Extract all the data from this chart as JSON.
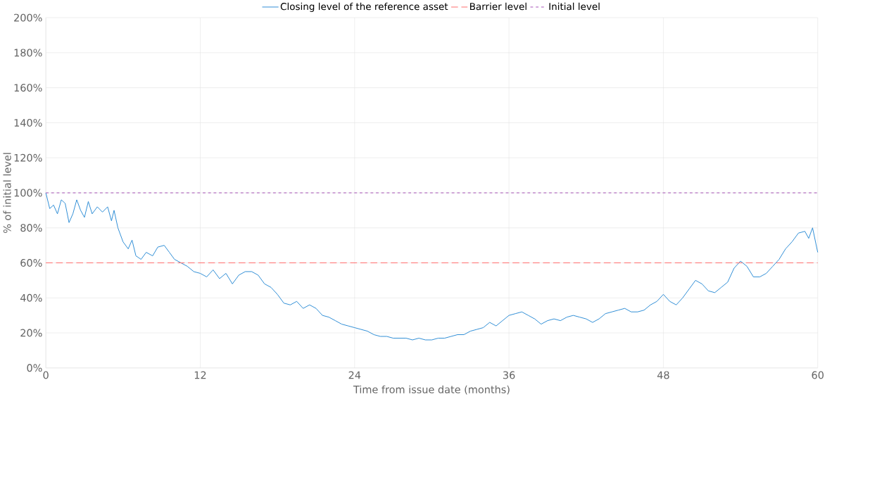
{
  "chart_data": {
    "type": "line",
    "xlabel": "Time from issue date (months)",
    "ylabel": "% of initial level",
    "x": [
      0,
      0.3,
      0.6,
      0.9,
      1.2,
      1.5,
      1.8,
      2.1,
      2.4,
      2.7,
      3.0,
      3.3,
      3.6,
      4.0,
      4.4,
      4.8,
      5.1,
      5.3,
      5.6,
      6.0,
      6.4,
      6.7,
      7.0,
      7.4,
      7.8,
      8.3,
      8.7,
      9.2,
      9.6,
      10.0,
      10.5,
      11.0,
      11.5,
      12.0,
      12.5,
      13.0,
      13.5,
      14.0,
      14.5,
      15.0,
      15.5,
      16.0,
      16.5,
      17.0,
      17.5,
      18.0,
      18.5,
      19.0,
      19.5,
      20.0,
      20.5,
      21.0,
      21.5,
      22.0,
      22.5,
      23.0,
      23.5,
      24.0,
      24.5,
      25.0,
      25.5,
      26.0,
      26.5,
      27.0,
      27.5,
      28.0,
      28.5,
      29.0,
      29.5,
      30.0,
      30.5,
      31.0,
      31.5,
      32.0,
      32.5,
      33.0,
      33.5,
      34.0,
      34.5,
      35.0,
      35.5,
      36.0,
      36.5,
      37.0,
      37.5,
      38.0,
      38.5,
      39.0,
      39.5,
      40.0,
      40.5,
      41.0,
      41.5,
      42.0,
      42.5,
      43.0,
      43.5,
      44.0,
      44.5,
      45.0,
      45.5,
      46.0,
      46.5,
      47.0,
      47.5,
      48.0,
      48.5,
      49.0,
      49.5,
      50.0,
      50.5,
      51.0,
      51.5,
      52.0,
      52.5,
      53.0,
      53.5,
      54.0,
      54.5,
      55.0,
      55.5,
      56.0,
      56.5,
      57.0,
      57.5,
      58.0,
      58.5,
      59.0,
      59.3,
      59.6,
      60.0
    ],
    "series": [
      {
        "name": "Closing level of the reference asset",
        "color": "#2a8ad4",
        "values": [
          100,
          91,
          93,
          88,
          96,
          94,
          83,
          88,
          96,
          90,
          86,
          95,
          88,
          92,
          89,
          92,
          84,
          90,
          80,
          72,
          68,
          73,
          64,
          62,
          66,
          64,
          69,
          70,
          66,
          62,
          60,
          58,
          55,
          54,
          52,
          56,
          51,
          54,
          48,
          53,
          55,
          55,
          53,
          48,
          46,
          42,
          37,
          36,
          38,
          34,
          36,
          34,
          30,
          29,
          27,
          25,
          24,
          23,
          22,
          21,
          19,
          18,
          18,
          17,
          17,
          17,
          16,
          17,
          16,
          16,
          17,
          17,
          18,
          19,
          19,
          21,
          22,
          23,
          26,
          24,
          27,
          30,
          31,
          32,
          30,
          28,
          25,
          27,
          28,
          27,
          29,
          30,
          29,
          28,
          26,
          28,
          31,
          32,
          33,
          34,
          32,
          32,
          33,
          36,
          38,
          42,
          38,
          36,
          40,
          45,
          50,
          48,
          44,
          43,
          46,
          49,
          57,
          61,
          58,
          52,
          52,
          54,
          58,
          62,
          68,
          72,
          77,
          78,
          74,
          80,
          66
        ]
      }
    ],
    "ref_lines": [
      {
        "axis": "y",
        "value": 60,
        "label": "Barrier level",
        "color": "#ff6f6f",
        "line_style": "dashed"
      },
      {
        "axis": "y",
        "value": 100,
        "label": "Initial level",
        "color": "#a855b8",
        "line_style": "dotted"
      }
    ],
    "xlim": [
      0,
      60
    ],
    "xticks": [
      0,
      12,
      24,
      36,
      48,
      60
    ],
    "ylim": [
      0,
      200
    ],
    "yticks": [
      {
        "value": 0,
        "label": "0%"
      },
      {
        "value": 20,
        "label": "20%"
      },
      {
        "value": 40,
        "label": "40%"
      },
      {
        "value": 60,
        "label": "60%"
      },
      {
        "value": 80,
        "label": "80%"
      },
      {
        "value": 100,
        "label": "100%"
      },
      {
        "value": 120,
        "label": "120%"
      },
      {
        "value": 140,
        "label": "140%"
      },
      {
        "value": 160,
        "label": "160%"
      },
      {
        "value": 180,
        "label": "180%"
      },
      {
        "value": 200,
        "label": "200%"
      }
    ],
    "grid": true,
    "legend": "top",
    "marker": "none",
    "line_style": "solid"
  }
}
